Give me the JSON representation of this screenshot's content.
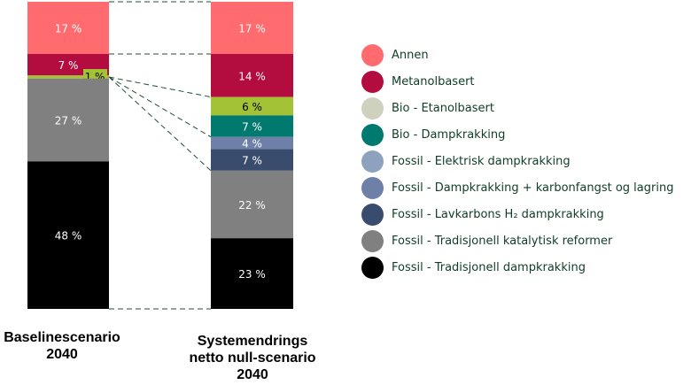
{
  "chart_data": {
    "type": "stacked-bar",
    "ylim": [
      0,
      100
    ],
    "unit": "%",
    "grid": false,
    "legend_position": "right",
    "categories": [
      "Baselinescenario\n2040",
      "Systemendrings\nnetto null-scenario\n2040"
    ],
    "series": [
      {
        "name": "Annen",
        "color": "#ff6b6e",
        "values": [
          17,
          17
        ]
      },
      {
        "name": "Metanolbasert",
        "color": "#b30c3e",
        "values": [
          7,
          14
        ]
      },
      {
        "name": "Bio - Etanolbasert",
        "color": "#cdd1bd",
        "bar_color": "#a3c236",
        "values": [
          1,
          6
        ]
      },
      {
        "name": "Bio - Dampkrakking",
        "color": "#007a6e",
        "values": [
          0,
          7
        ]
      },
      {
        "name": "Fossil - Elektrisk dampkrakking",
        "color": "#8ea1bf",
        "values": [
          0,
          0
        ]
      },
      {
        "name": "Fossil - Dampkrakking + karbonfangst og lagring",
        "color": "#6e80a8",
        "values": [
          0,
          4
        ]
      },
      {
        "name": "Fossil - Lavkarbons H₂ dampkrakking",
        "color": "#3a4c6e",
        "values": [
          0,
          7
        ]
      },
      {
        "name": "Fossil - Tradisjonell katalytisk reformer",
        "color": "#808080",
        "values": [
          27,
          22
        ]
      },
      {
        "name": "Fossil - Tradisjonell dampkrakking",
        "color": "#000000",
        "values": [
          48,
          23
        ]
      }
    ],
    "data_labels": [
      [
        "17 %",
        "7 %",
        "1 %",
        "",
        "",
        "",
        "",
        "27 %",
        "48 %"
      ],
      [
        "17 %",
        "14 %",
        "6 %",
        "7 %",
        "",
        "4 %",
        "7 %",
        "22 %",
        "23 %"
      ]
    ]
  },
  "legend": {
    "items": [
      {
        "label": "Annen",
        "color": "#ff6b6e"
      },
      {
        "label": "Metanolbasert",
        "color": "#b30c3e"
      },
      {
        "label": "Bio - Etanolbasert",
        "color": "#cdd1bd"
      },
      {
        "label": "Bio - Dampkrakking",
        "color": "#007a6e"
      },
      {
        "label": "Fossil - Elektrisk dampkrakking",
        "color": "#8ea1bf"
      },
      {
        "label": "Fossil - Dampkrakking + karbonfangst og lagring",
        "color": "#6e80a8"
      },
      {
        "label": "Fossil - Lavkarbons H₂ dampkrakking",
        "color": "#3a4c6e"
      },
      {
        "label": "Fossil - Tradisjonell katalytisk reformer",
        "color": "#808080"
      },
      {
        "label": "Fossil - Tradisjonell dampkrakking",
        "color": "#000000"
      }
    ]
  }
}
